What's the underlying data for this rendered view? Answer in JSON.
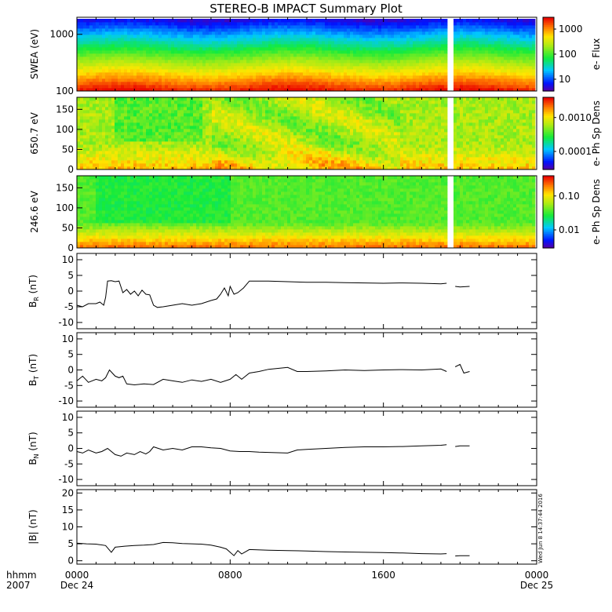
{
  "title": "STEREO-B IMPACT Summary Plot",
  "stamp": "Wed Jun  8 14:37:44 2016",
  "time_axis": {
    "row_label_1": "hhmm",
    "row_label_2": "2007",
    "ticks": [
      {
        "hours": 0,
        "label": "0000",
        "date": "Dec 24"
      },
      {
        "hours": 8,
        "label": "0800",
        "date": ""
      },
      {
        "hours": 16,
        "label": "1600",
        "date": ""
      },
      {
        "hours": 24,
        "label": "0000",
        "date": "Dec 25"
      }
    ],
    "minor_step_hours": 1
  },
  "chart_data": [
    {
      "type": "heatmap",
      "panel": "swea",
      "ylabel": "SWEA (eV)",
      "ylim": [
        100,
        2000
      ],
      "yscale": "log",
      "yticks": [
        {
          "v": 100,
          "label": "100"
        },
        {
          "v": 1000,
          "label": "1000"
        }
      ],
      "colorbar_label": "e- Flux",
      "colorbar_ticks": [
        "10",
        "100",
        "1000"
      ],
      "data_gap_hours": [
        [
          19.4,
          19.75
        ]
      ]
    },
    {
      "type": "heatmap",
      "panel": "pad650",
      "ylabel": "650.7 eV",
      "ylim": [
        0,
        180
      ],
      "yticks": [
        {
          "v": 0,
          "label": "0"
        },
        {
          "v": 50,
          "label": "50"
        },
        {
          "v": 100,
          "label": "100"
        },
        {
          "v": 150,
          "label": "150"
        }
      ],
      "colorbar_label": "e- Ph Sp Dens",
      "colorbar_ticks": [
        "0.0001",
        "0.0010"
      ],
      "data_gap_hours": [
        [
          19.4,
          19.75
        ]
      ]
    },
    {
      "type": "heatmap",
      "panel": "pad246",
      "ylabel": "246.6 eV",
      "ylim": [
        0,
        180
      ],
      "yticks": [
        {
          "v": 0,
          "label": "0"
        },
        {
          "v": 50,
          "label": "50"
        },
        {
          "v": 100,
          "label": "100"
        },
        {
          "v": 150,
          "label": "150"
        }
      ],
      "colorbar_label": "e- Ph Sp Dens",
      "colorbar_ticks": [
        "0.01",
        "0.10"
      ],
      "data_gap_hours": [
        [
          19.4,
          19.75
        ]
      ]
    },
    {
      "type": "line",
      "panel": "br",
      "ylabel": "B_R (nT)",
      "ylim": [
        -12,
        12
      ],
      "yticks": [
        -10,
        -5,
        0,
        5,
        10
      ],
      "x": [
        0.0,
        0.3,
        0.6,
        1.0,
        1.2,
        1.4,
        1.5,
        1.6,
        1.8,
        2.0,
        2.2,
        2.4,
        2.6,
        2.8,
        3.0,
        3.2,
        3.4,
        3.6,
        3.8,
        4.0,
        4.2,
        4.5,
        5.0,
        5.5,
        6.0,
        6.5,
        7.0,
        7.3,
        7.5,
        7.7,
        7.9,
        8.0,
        8.2,
        8.4,
        8.7,
        9.0,
        10.0,
        11.0,
        12.0,
        13.0,
        14.0,
        15.0,
        16.0,
        17.0,
        18.0,
        19.0,
        19.3,
        19.75,
        20.0,
        20.5
      ],
      "y": [
        -4.5,
        -5.0,
        -4.0,
        -4.0,
        -3.5,
        -4.5,
        -2.0,
        3.2,
        3.3,
        3.0,
        3.2,
        -0.5,
        0.5,
        -1.0,
        0.0,
        -1.5,
        0.3,
        -1.0,
        -1.2,
        -4.5,
        -5.2,
        -5.0,
        -4.5,
        -4.0,
        -4.5,
        -4.0,
        -3.0,
        -2.5,
        -1.0,
        1.0,
        -1.5,
        1.5,
        -1.0,
        -0.5,
        1.0,
        3.2,
        3.2,
        3.0,
        2.8,
        2.8,
        2.7,
        2.6,
        2.5,
        2.6,
        2.5,
        2.3,
        2.5,
        1.5,
        1.3,
        1.5
      ]
    },
    {
      "type": "line",
      "panel": "bt",
      "ylabel": "B_T (nT)",
      "ylim": [
        -12,
        12
      ],
      "yticks": [
        -10,
        -5,
        0,
        5,
        10
      ],
      "x": [
        0.0,
        0.3,
        0.6,
        1.0,
        1.3,
        1.5,
        1.7,
        2.0,
        2.2,
        2.4,
        2.6,
        3.0,
        3.5,
        4.0,
        4.5,
        5.0,
        5.5,
        6.0,
        6.5,
        7.0,
        7.5,
        8.0,
        8.3,
        8.6,
        9.0,
        9.5,
        10.0,
        10.5,
        11.0,
        11.5,
        12.0,
        13.0,
        14.0,
        15.0,
        16.0,
        17.0,
        18.0,
        19.0,
        19.3,
        19.75,
        20.0,
        20.2,
        20.5
      ],
      "y": [
        -3.5,
        -2.0,
        -4.0,
        -3.0,
        -3.5,
        -2.5,
        0.0,
        -2.0,
        -2.5,
        -2.0,
        -4.5,
        -4.8,
        -4.5,
        -4.7,
        -3.0,
        -3.5,
        -4.0,
        -3.2,
        -3.7,
        -3.0,
        -4.0,
        -3.0,
        -1.5,
        -3.0,
        -1.0,
        -0.5,
        0.2,
        0.5,
        0.8,
        -0.5,
        -0.5,
        -0.3,
        0.0,
        -0.2,
        0.0,
        0.1,
        0.0,
        0.3,
        -0.5,
        1.0,
        1.8,
        -1.0,
        -0.5
      ]
    },
    {
      "type": "line",
      "panel": "bn",
      "ylabel": "B_N (nT)",
      "ylim": [
        -12,
        12
      ],
      "yticks": [
        -10,
        -5,
        0,
        5,
        10
      ],
      "x": [
        0.0,
        0.3,
        0.6,
        1.0,
        1.3,
        1.6,
        2.0,
        2.3,
        2.6,
        3.0,
        3.3,
        3.6,
        3.8,
        4.0,
        4.5,
        5.0,
        5.5,
        6.0,
        6.5,
        7.0,
        7.5,
        8.0,
        8.5,
        9.0,
        9.5,
        10.0,
        11.0,
        11.5,
        12.0,
        13.0,
        14.0,
        15.0,
        16.0,
        17.0,
        18.0,
        19.0,
        19.3,
        19.75,
        20.0,
        20.5
      ],
      "y": [
        -1.0,
        -1.5,
        -0.5,
        -1.5,
        -1.0,
        0.0,
        -2.0,
        -2.5,
        -1.5,
        -2.0,
        -1.0,
        -1.8,
        -1.0,
        0.5,
        -0.5,
        0.0,
        -0.5,
        0.5,
        0.5,
        0.2,
        0.0,
        -0.8,
        -1.0,
        -1.0,
        -1.2,
        -1.3,
        -1.5,
        -0.5,
        -0.3,
        0.0,
        0.3,
        0.5,
        0.5,
        0.6,
        0.8,
        1.0,
        1.2,
        0.6,
        0.8,
        0.8
      ]
    },
    {
      "type": "line",
      "panel": "bmag",
      "ylabel": "|B| (nT)",
      "ylim": [
        -1,
        21
      ],
      "yticks": [
        0,
        5,
        10,
        15,
        20
      ],
      "x": [
        0.0,
        0.5,
        1.0,
        1.5,
        1.8,
        2.0,
        2.5,
        3.0,
        3.5,
        4.0,
        4.5,
        5.0,
        5.5,
        6.0,
        6.5,
        7.0,
        7.5,
        7.8,
        8.0,
        8.2,
        8.4,
        8.6,
        9.0,
        10.0,
        11.0,
        12.0,
        13.0,
        14.0,
        15.0,
        16.0,
        17.0,
        18.0,
        19.0,
        19.3,
        19.75,
        20.0,
        20.5
      ],
      "y": [
        5.2,
        5.0,
        4.9,
        4.5,
        2.5,
        4.0,
        4.3,
        4.5,
        4.6,
        4.8,
        5.4,
        5.3,
        5.1,
        5.0,
        4.9,
        4.6,
        4.0,
        3.5,
        2.5,
        1.5,
        3.0,
        2.0,
        3.3,
        3.1,
        3.0,
        2.9,
        2.7,
        2.6,
        2.5,
        2.4,
        2.3,
        2.1,
        2.0,
        2.1,
        1.4,
        1.5,
        1.5
      ]
    }
  ]
}
